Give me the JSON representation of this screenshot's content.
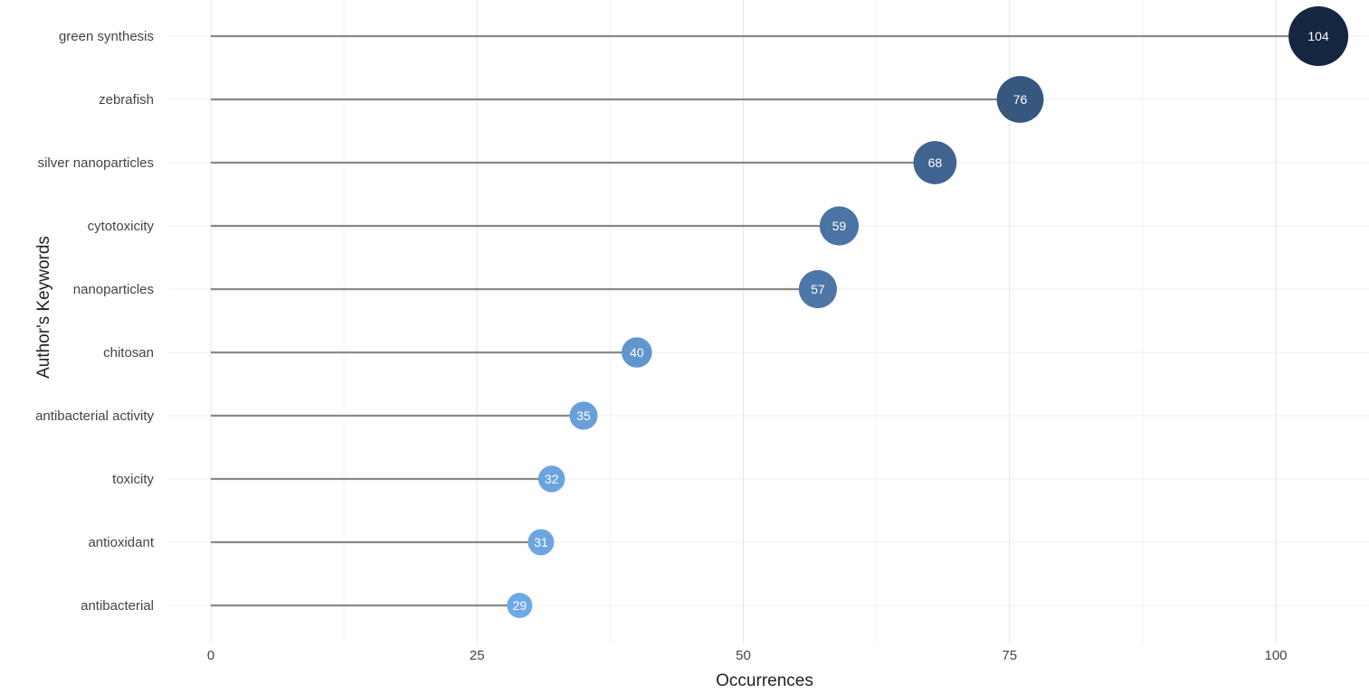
{
  "chart_data": {
    "type": "lollipop",
    "xlabel": "Occurrences",
    "ylabel": "Author's Keywords",
    "xlim": [
      0,
      108
    ],
    "x_ticks": [
      0,
      25,
      50,
      75,
      100
    ],
    "grid": true,
    "categories": [
      "green synthesis",
      "zebrafish",
      "silver nanoparticles",
      "cytotoxicity",
      "nanoparticles",
      "chitosan",
      "antibacterial activity",
      "toxicity",
      "antioxidant",
      "antibacterial"
    ],
    "values": [
      104,
      76,
      68,
      59,
      57,
      40,
      35,
      32,
      31,
      29
    ],
    "color_scale": {
      "low": "#6fa8e6",
      "high": "#142640"
    },
    "stem_color": "#888888"
  }
}
